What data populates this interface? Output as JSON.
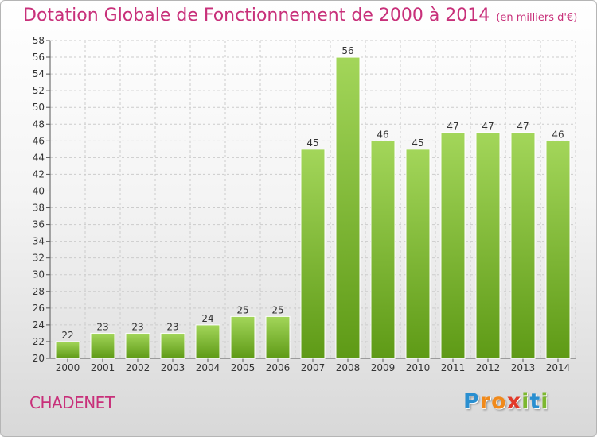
{
  "header": {
    "title": "Dotation Globale de Fonctionnement de 2000 à 2014",
    "subtitle": "(en milliers d'€)"
  },
  "footer": {
    "commune": "CHADENET",
    "logo": "Proxiti",
    "logo_letters": [
      {
        "ch": "P",
        "color": "#2a8fd0"
      },
      {
        "ch": "r",
        "color": "#f08a1c"
      },
      {
        "ch": "o",
        "color": "#f08a1c"
      },
      {
        "ch": "x",
        "color": "#e23a2a"
      },
      {
        "ch": "i",
        "color": "#7cb82f"
      },
      {
        "ch": "t",
        "color": "#2a8fd0"
      },
      {
        "ch": "i",
        "color": "#7cb82f"
      }
    ]
  },
  "colors": {
    "accent": "#c8307a",
    "bar_light": "#9fd154",
    "bar_dark": "#5e9a16"
  },
  "chart_data": {
    "type": "bar",
    "title": "Dotation Globale de Fonctionnement de 2000 à 2014",
    "subtitle": "(en milliers d'€)",
    "categories": [
      "2000",
      "2001",
      "2002",
      "2003",
      "2004",
      "2005",
      "2006",
      "2007",
      "2008",
      "2009",
      "2010",
      "2011",
      "2012",
      "2013",
      "2014"
    ],
    "values": [
      22,
      23,
      23,
      23,
      24,
      25,
      25,
      45,
      56,
      46,
      45,
      47,
      47,
      47,
      46
    ],
    "ylim": [
      20,
      58
    ],
    "yticks": [
      20,
      22,
      24,
      26,
      28,
      30,
      32,
      34,
      36,
      38,
      40,
      42,
      44,
      46,
      48,
      50,
      52,
      54,
      56,
      58
    ],
    "grid": true,
    "legend": "none"
  }
}
